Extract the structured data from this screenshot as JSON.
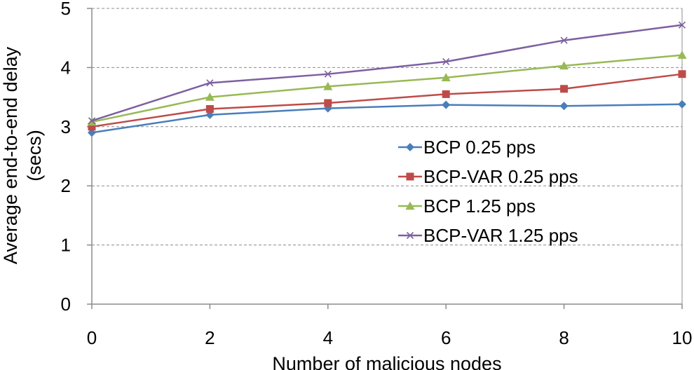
{
  "chart_data": {
    "type": "line",
    "title": "",
    "xlabel": "Number of malicious nodes",
    "ylabel_line1": "Average end-to-end delay",
    "ylabel_line2": "(secs)",
    "x": [
      0,
      2,
      4,
      6,
      8,
      10
    ],
    "x_ticks": [
      "0",
      "2",
      "4",
      "6",
      "8",
      "10"
    ],
    "y_ticks": [
      "0",
      "1",
      "2",
      "3",
      "4",
      "5"
    ],
    "xlim": [
      0,
      10
    ],
    "ylim": [
      0,
      5
    ],
    "grid": "horizontal-dashed",
    "legend_position": "center-right",
    "series": [
      {
        "name": "BCP 0.25 pps",
        "color": "#4A7EBB",
        "marker": "diamond",
        "values": [
          2.9,
          3.2,
          3.31,
          3.37,
          3.35,
          3.38
        ]
      },
      {
        "name": "BCP-VAR 0.25 pps",
        "color": "#BE4B48",
        "marker": "square",
        "values": [
          3.0,
          3.3,
          3.4,
          3.55,
          3.64,
          3.89
        ]
      },
      {
        "name": "BCP 1.25 pps",
        "color": "#98B954",
        "marker": "triangle",
        "values": [
          3.08,
          3.5,
          3.68,
          3.83,
          4.03,
          4.21
        ]
      },
      {
        "name": "BCP-VAR 1.25 pps",
        "color": "#7D60A0",
        "marker": "x",
        "values": [
          3.1,
          3.74,
          3.89,
          4.1,
          4.46,
          4.72
        ]
      }
    ]
  }
}
